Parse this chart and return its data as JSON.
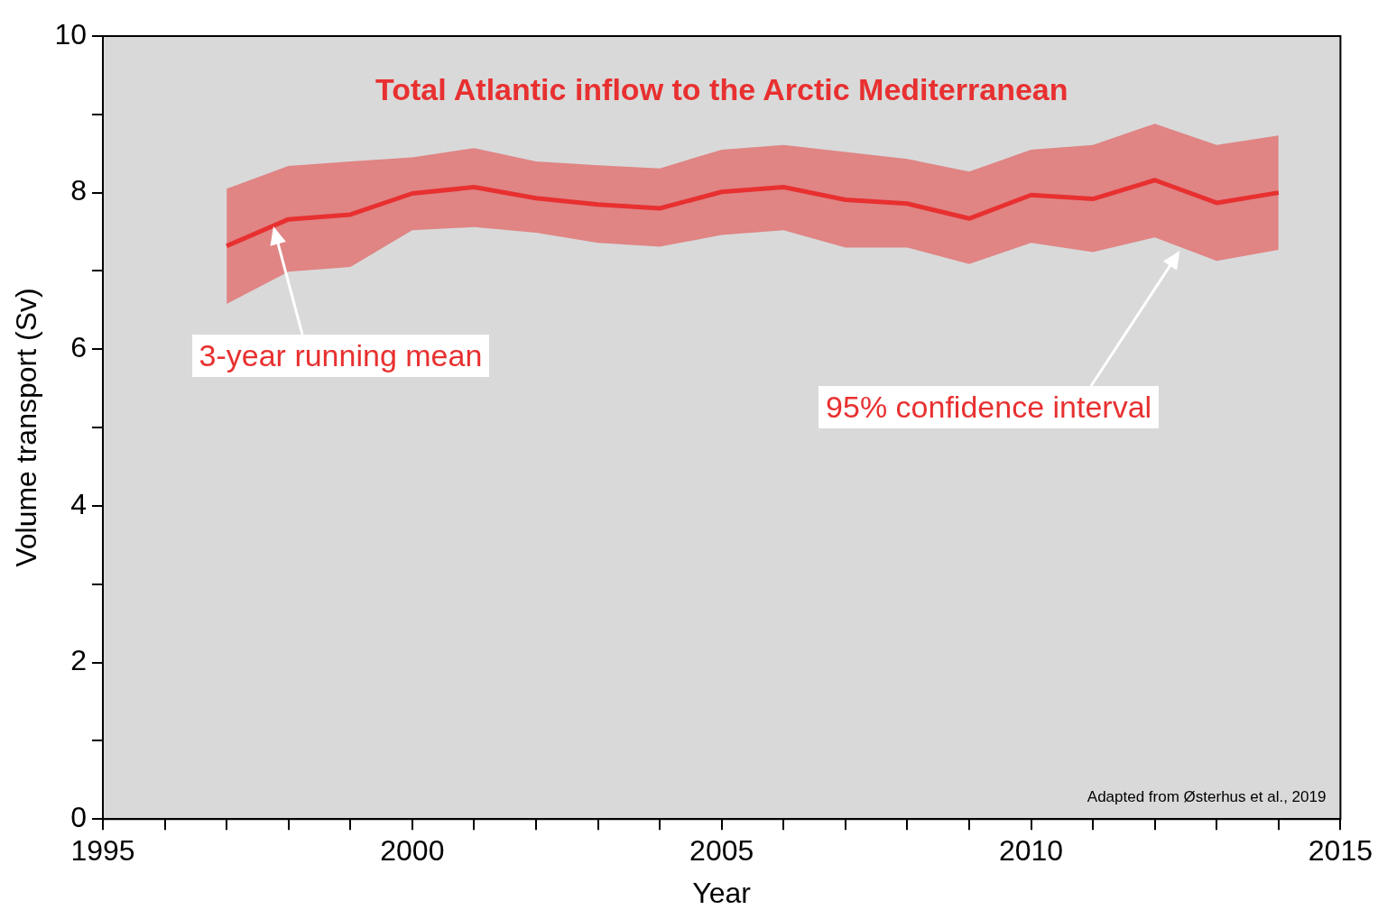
{
  "chart_data": {
    "type": "line",
    "title": "Total Atlantic inflow to the Arctic Mediterranean",
    "xlabel": "Year",
    "ylabel": "Volume transport (Sv)",
    "x": [
      1997,
      1998,
      1999,
      2000,
      2001,
      2002,
      2003,
      2004,
      2005,
      2006,
      2007,
      2008,
      2009,
      2010,
      2011,
      2012,
      2013,
      2014
    ],
    "series": [
      {
        "color": "#e83030",
        "values": [
          7.32,
          7.66,
          7.72,
          7.99,
          8.07,
          7.93,
          7.85,
          7.8,
          8.01,
          8.07,
          7.91,
          7.86,
          7.67,
          7.97,
          7.92,
          8.16,
          7.87,
          8.0
        ],
        "lower": [
          6.58,
          6.99,
          7.05,
          7.52,
          7.56,
          7.49,
          7.36,
          7.31,
          7.46,
          7.52,
          7.3,
          7.3,
          7.09,
          7.36,
          7.24,
          7.43,
          7.13,
          7.27
        ],
        "upper": [
          8.05,
          8.34,
          8.4,
          8.45,
          8.57,
          8.4,
          8.35,
          8.31,
          8.55,
          8.61,
          8.52,
          8.43,
          8.27,
          8.55,
          8.61,
          8.88,
          8.61,
          8.73
        ]
      }
    ],
    "xlim": [
      1995,
      2015
    ],
    "xticks": [
      1995,
      {
        "value": 1996,
        "label": null
      },
      {
        "value": 1997,
        "label": null
      },
      {
        "value": 1998,
        "label": null
      },
      {
        "value": 1999,
        "label": null
      },
      2000,
      {
        "value": 2001,
        "label": null
      },
      {
        "value": 2002,
        "label": null
      },
      {
        "value": 2003,
        "label": null
      },
      {
        "value": 2004,
        "label": null
      },
      2005,
      {
        "value": 2006,
        "label": null
      },
      {
        "value": 2007,
        "label": null
      },
      {
        "value": 2008,
        "label": null
      },
      {
        "value": 2009,
        "label": null
      },
      2010,
      {
        "value": 2011,
        "label": null
      },
      {
        "value": 2012,
        "label": null
      },
      {
        "value": 2013,
        "label": null
      },
      {
        "value": 2014,
        "label": null
      },
      2015
    ],
    "ylim": [
      0,
      10
    ],
    "yticks": [
      0,
      {
        "value": 1,
        "label": null
      },
      2,
      {
        "value": 3,
        "label": null
      },
      4,
      {
        "value": 5,
        "label": null
      },
      6,
      {
        "value": 7,
        "label": null
      },
      8,
      {
        "value": 9,
        "label": null
      },
      10
    ],
    "annotations": [
      "3-year running mean",
      "95% confidence interval",
      "Adapted from Østerhus et al., 2019"
    ],
    "grid": false,
    "legend": false,
    "marker": "none",
    "line_style": "solid"
  }
}
